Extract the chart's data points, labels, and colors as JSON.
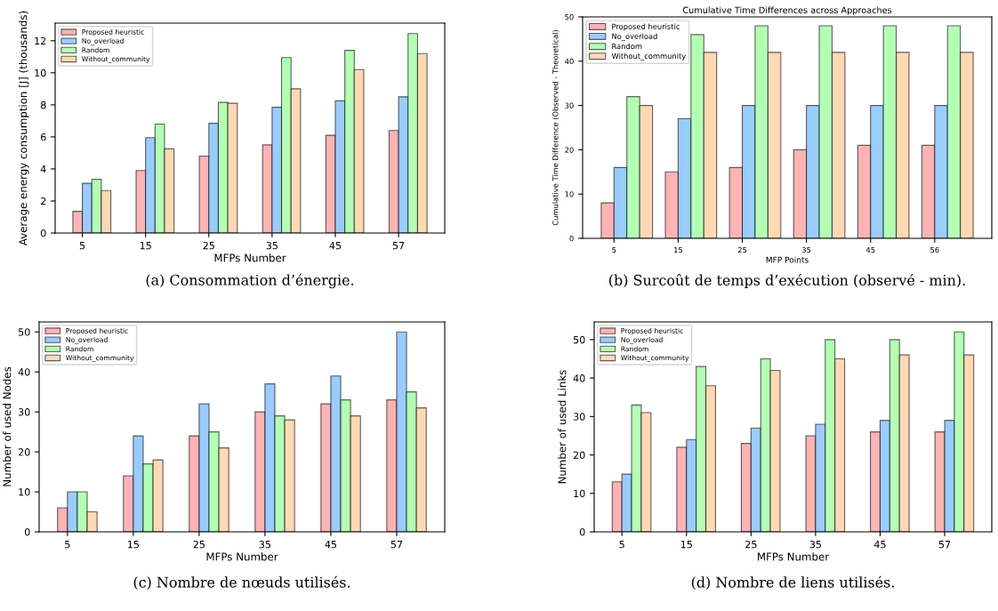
{
  "chart_data": [
    {
      "type": "bar",
      "categories": [
        "5",
        "15",
        "25",
        "35",
        "45",
        "57"
      ],
      "xlabel": "MFPs Number",
      "ylabel": "Average energy consumption [J] (thousands)",
      "ylim": [
        0,
        13.1
      ],
      "yticks": [
        0,
        2,
        4,
        6,
        8,
        10,
        12
      ],
      "legend": "top left",
      "grid": false,
      "annotations": [
        "(a) Consommation d’énergie."
      ],
      "series": [
        {
          "name": "Proposed heuristic",
          "color": "#ffb3b3",
          "values": [
            1.35,
            3.9,
            4.8,
            5.5,
            6.1,
            6.4
          ]
        },
        {
          "name": "No_overload",
          "color": "#99ccff",
          "values": [
            3.1,
            5.95,
            6.85,
            7.85,
            8.25,
            8.5
          ]
        },
        {
          "name": "Random",
          "color": "#b3ffb3",
          "values": [
            3.35,
            6.8,
            8.15,
            10.95,
            11.4,
            12.45
          ]
        },
        {
          "name": "Without_community",
          "color": "#ffd9b3",
          "values": [
            2.65,
            5.25,
            8.1,
            9.0,
            10.2,
            11.2
          ]
        }
      ]
    },
    {
      "type": "bar",
      "title": "Cumulative Time Differences across Approaches",
      "categories": [
        "5",
        "15",
        "25",
        "35",
        "45",
        "56"
      ],
      "xlabel": "MFP Points",
      "ylabel": "Cumulative Time Difference (Observed - Theoretical)",
      "ylim": [
        0,
        50
      ],
      "yticks": [
        0,
        10,
        20,
        30,
        40,
        50
      ],
      "legend": "top left",
      "grid": false,
      "annotations": [
        "(b) Surcoût de temps d’exécution (observé - min)."
      ],
      "series": [
        {
          "name": "Proposed heuristic",
          "color": "#ffb3b3",
          "values": [
            8,
            15,
            16,
            20,
            21,
            21
          ]
        },
        {
          "name": "No_overload",
          "color": "#99ccff",
          "values": [
            16,
            27,
            30,
            30,
            30,
            30
          ]
        },
        {
          "name": "Random",
          "color": "#b3ffb3",
          "values": [
            32,
            46,
            48,
            48,
            48,
            48
          ]
        },
        {
          "name": "Without_community",
          "color": "#ffd9b3",
          "values": [
            30,
            42,
            42,
            42,
            42,
            42
          ]
        }
      ]
    },
    {
      "type": "bar",
      "categories": [
        "5",
        "15",
        "25",
        "35",
        "45",
        "57"
      ],
      "xlabel": "MFPs Number",
      "ylabel": "Number of used Nodes",
      "ylim": [
        0,
        52.5
      ],
      "yticks": [
        0,
        10,
        20,
        30,
        40,
        50
      ],
      "legend": "top left",
      "grid": false,
      "annotations": [
        "(c) Nombre de nœuds utilisés."
      ],
      "series": [
        {
          "name": "Proposed heuristic",
          "color": "#ffb3b3",
          "values": [
            6,
            14,
            24,
            30,
            32,
            33
          ]
        },
        {
          "name": "No_overload",
          "color": "#99ccff",
          "values": [
            10,
            24,
            32,
            37,
            39,
            50
          ]
        },
        {
          "name": "Random",
          "color": "#b3ffb3",
          "values": [
            10,
            17,
            25,
            29,
            33,
            35
          ]
        },
        {
          "name": "Without_community",
          "color": "#ffd9b3",
          "values": [
            5,
            18,
            21,
            28,
            29,
            31
          ]
        }
      ]
    },
    {
      "type": "bar",
      "categories": [
        "5",
        "15",
        "25",
        "35",
        "45",
        "57"
      ],
      "xlabel": "MFPs Number",
      "ylabel": "Number of used Links",
      "ylim": [
        0,
        54.6
      ],
      "yticks": [
        0,
        10,
        20,
        30,
        40,
        50
      ],
      "legend": "top left",
      "grid": false,
      "annotations": [
        "(d) Nombre de liens utilisés."
      ],
      "series": [
        {
          "name": "Proposed heuristic",
          "color": "#ffb3b3",
          "values": [
            13,
            22,
            23,
            25,
            26,
            26
          ]
        },
        {
          "name": "No_overload",
          "color": "#99ccff",
          "values": [
            15,
            24,
            27,
            28,
            29,
            29
          ]
        },
        {
          "name": "Random",
          "color": "#b3ffb3",
          "values": [
            33,
            43,
            45,
            50,
            50,
            52
          ]
        },
        {
          "name": "Without_community",
          "color": "#ffd9b3",
          "values": [
            31,
            38,
            42,
            45,
            46,
            46
          ]
        }
      ]
    }
  ]
}
